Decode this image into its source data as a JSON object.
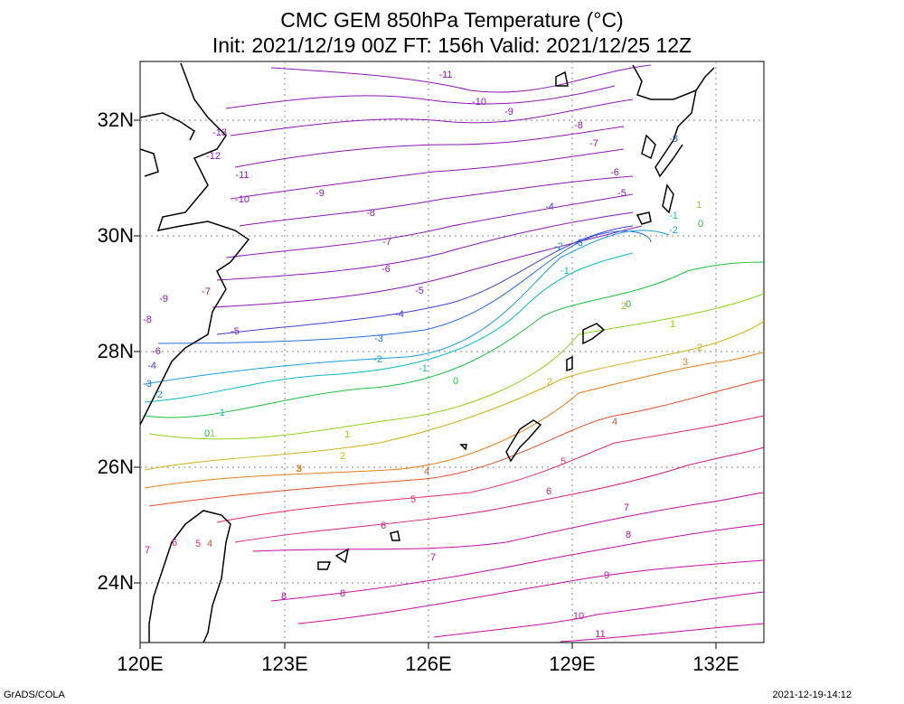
{
  "title_line1": "CMC GEM 850hPa Temperature (°C)",
  "title_line2": "Init: 2021/12/19 00Z  FT: 156h  Valid: 2021/12/25 12Z",
  "lat_labels": [
    "32N",
    "30N",
    "28N",
    "26N",
    "24N"
  ],
  "lon_labels": [
    "120E",
    "123E",
    "126E",
    "129E",
    "132E"
  ],
  "footer_left": "GrADS/COLA",
  "footer_right": "2021-12-19-14:12",
  "contour_labels": [
    "-13",
    "-12",
    "-11",
    "-11",
    "-10",
    "-10",
    "-9",
    "-9",
    "-9",
    "-8",
    "-8",
    "-8",
    "-7",
    "-7",
    "-7",
    "-6",
    "-6",
    "-6",
    "-5",
    "-5",
    "-5",
    "-4",
    "-4",
    "-4",
    "-3",
    "-3",
    "-3",
    "-3",
    "-2",
    "-2",
    "-2",
    "-2",
    "-1",
    "-1",
    "-1",
    "-1",
    "0",
    "0",
    "0",
    "0",
    "1",
    "1",
    "1",
    "1",
    "2",
    "2",
    "2",
    "2",
    "3",
    "3",
    "3",
    "4",
    "4",
    "4",
    "5",
    "5",
    "5",
    "6",
    "6",
    "6",
    "7",
    "7",
    "7",
    "8",
    "8",
    "8",
    "9",
    "10",
    "11"
  ]
}
